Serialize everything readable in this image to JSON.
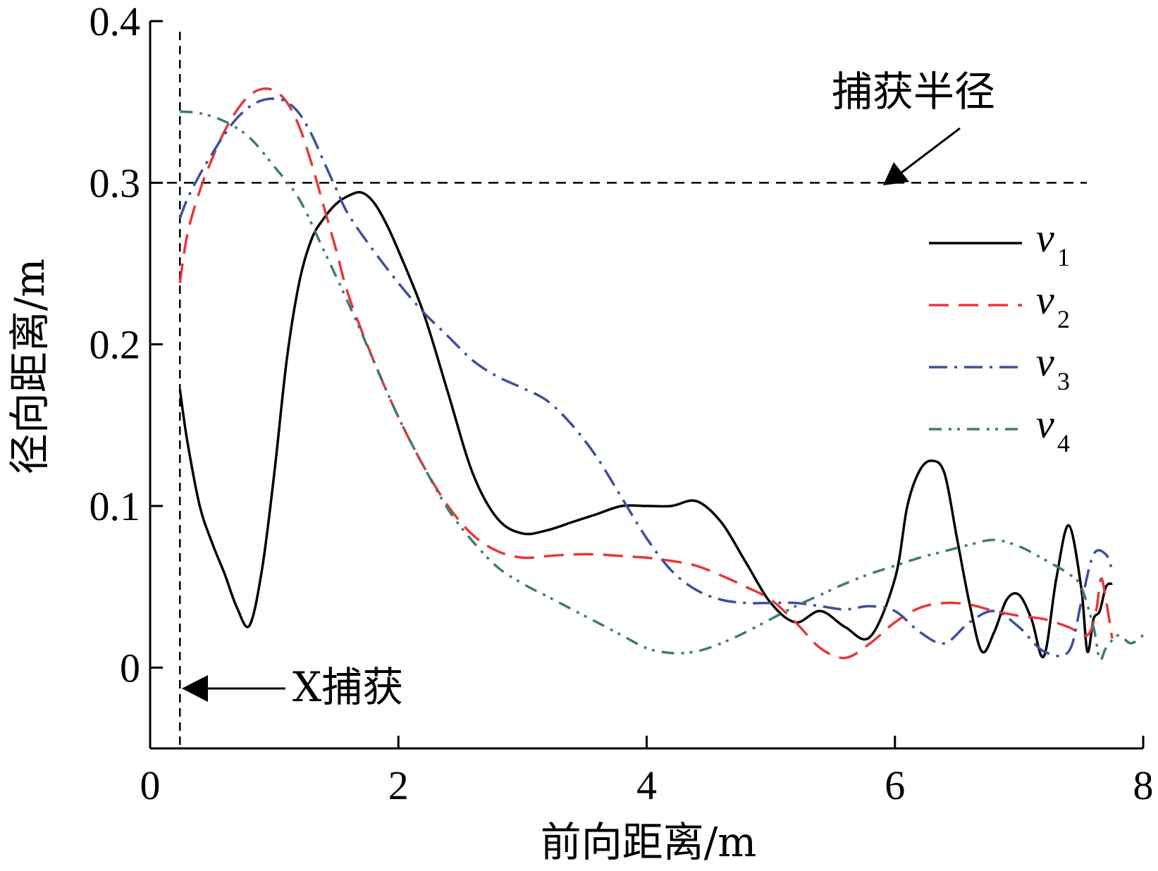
{
  "chart_data": {
    "type": "line",
    "xlabel": "前向距离/m",
    "ylabel": "径向距离/m",
    "xlim": [
      0,
      8
    ],
    "ylim": [
      -0.05,
      0.4
    ],
    "xticks": [
      0,
      2,
      4,
      6,
      8
    ],
    "xtick_labels": [
      "0",
      "2",
      "4",
      "6",
      "8"
    ],
    "yticks": [
      0,
      0.1,
      0.2,
      0.3,
      0.4
    ],
    "ytick_labels": [
      "0",
      "0.1",
      "0.2",
      "0.3",
      "0.4"
    ],
    "grid": false,
    "legend_position": "right",
    "capture_radius": {
      "y": 0.3,
      "label": "捕获半径",
      "color": "#000000"
    },
    "capture_line": {
      "x": 0.24,
      "label": "X捕获",
      "color": "#000000"
    },
    "series": [
      {
        "name": "v",
        "sub": "1",
        "color": "#000000",
        "dash": "solid",
        "x": [
          0.24,
          0.3,
          0.4,
          0.5,
          0.6,
          0.7,
          0.8,
          0.9,
          1.0,
          1.1,
          1.2,
          1.3,
          1.4,
          1.5,
          1.6,
          1.7,
          1.8,
          1.9,
          2.0,
          2.2,
          2.4,
          2.6,
          2.8,
          3.0,
          3.2,
          3.4,
          3.6,
          3.8,
          4.0,
          4.2,
          4.4,
          4.6,
          4.8,
          5.0,
          5.2,
          5.4,
          5.6,
          5.8,
          6.0,
          6.1,
          6.2,
          6.3,
          6.4,
          6.5,
          6.6,
          6.7,
          6.8,
          6.9,
          7.0,
          7.1,
          7.2,
          7.3,
          7.4,
          7.5,
          7.55,
          7.6,
          7.65,
          7.7,
          7.75
        ],
        "y": [
          0.172,
          0.14,
          0.1,
          0.077,
          0.058,
          0.037,
          0.026,
          0.06,
          0.12,
          0.19,
          0.238,
          0.265,
          0.278,
          0.287,
          0.292,
          0.294,
          0.288,
          0.275,
          0.258,
          0.22,
          0.17,
          0.12,
          0.092,
          0.083,
          0.085,
          0.09,
          0.095,
          0.1,
          0.1,
          0.1,
          0.103,
          0.09,
          0.065,
          0.04,
          0.028,
          0.035,
          0.025,
          0.019,
          0.055,
          0.1,
          0.122,
          0.128,
          0.12,
          0.08,
          0.04,
          0.01,
          0.022,
          0.042,
          0.045,
          0.03,
          0.007,
          0.055,
          0.088,
          0.05,
          0.01,
          0.03,
          0.035,
          0.05,
          0.052
        ]
      },
      {
        "name": "v",
        "sub": "2",
        "color": "#e8363a",
        "dash": "28 14",
        "x": [
          0.24,
          0.3,
          0.4,
          0.5,
          0.6,
          0.7,
          0.8,
          0.9,
          1.0,
          1.1,
          1.2,
          1.3,
          1.4,
          1.5,
          1.6,
          1.8,
          2.0,
          2.2,
          2.4,
          2.6,
          2.8,
          3.0,
          3.2,
          3.4,
          3.6,
          3.8,
          4.0,
          4.2,
          4.4,
          4.6,
          4.8,
          5.0,
          5.2,
          5.4,
          5.6,
          5.8,
          6.0,
          6.2,
          6.4,
          6.6,
          6.8,
          7.0,
          7.2,
          7.4,
          7.55,
          7.62,
          7.66,
          7.7,
          7.75
        ],
        "y": [
          0.238,
          0.268,
          0.295,
          0.315,
          0.332,
          0.345,
          0.354,
          0.358,
          0.357,
          0.35,
          0.335,
          0.312,
          0.285,
          0.258,
          0.23,
          0.19,
          0.155,
          0.125,
          0.1,
          0.082,
          0.072,
          0.068,
          0.069,
          0.07,
          0.07,
          0.069,
          0.068,
          0.066,
          0.063,
          0.057,
          0.05,
          0.042,
          0.028,
          0.012,
          0.006,
          0.015,
          0.028,
          0.037,
          0.04,
          0.039,
          0.035,
          0.032,
          0.03,
          0.025,
          0.02,
          0.035,
          0.055,
          0.042,
          0.018
        ]
      },
      {
        "name": "v",
        "sub": "3",
        "color": "#3e4ea0",
        "dash": "26 10 4 10",
        "x": [
          0.24,
          0.3,
          0.4,
          0.5,
          0.6,
          0.7,
          0.8,
          0.9,
          1.0,
          1.1,
          1.2,
          1.3,
          1.4,
          1.5,
          1.6,
          1.8,
          2.0,
          2.2,
          2.4,
          2.6,
          2.8,
          3.0,
          3.2,
          3.4,
          3.6,
          3.8,
          4.0,
          4.2,
          4.4,
          4.6,
          4.8,
          5.0,
          5.2,
          5.4,
          5.6,
          5.8,
          6.0,
          6.2,
          6.4,
          6.6,
          6.8,
          7.0,
          7.2,
          7.4,
          7.5,
          7.6,
          7.7,
          7.75
        ],
        "y": [
          0.278,
          0.29,
          0.305,
          0.318,
          0.33,
          0.34,
          0.347,
          0.351,
          0.352,
          0.35,
          0.343,
          0.33,
          0.313,
          0.296,
          0.28,
          0.258,
          0.238,
          0.22,
          0.205,
          0.19,
          0.18,
          0.173,
          0.165,
          0.15,
          0.13,
          0.105,
          0.08,
          0.06,
          0.048,
          0.042,
          0.04,
          0.04,
          0.04,
          0.038,
          0.036,
          0.038,
          0.035,
          0.022,
          0.015,
          0.028,
          0.035,
          0.025,
          0.01,
          0.01,
          0.04,
          0.07,
          0.07,
          0.06
        ]
      },
      {
        "name": "v",
        "sub": "4",
        "color": "#3d7b72",
        "dash": "18 10 4 8 4 10",
        "x": [
          0.24,
          0.4,
          0.6,
          0.8,
          1.0,
          1.2,
          1.4,
          1.6,
          1.8,
          2.0,
          2.2,
          2.4,
          2.6,
          2.8,
          3.0,
          3.2,
          3.4,
          3.6,
          3.8,
          4.0,
          4.2,
          4.4,
          4.6,
          4.8,
          5.0,
          5.2,
          5.4,
          5.6,
          5.8,
          6.0,
          6.2,
          6.4,
          6.6,
          6.8,
          7.0,
          7.2,
          7.4,
          7.5,
          7.6,
          7.65,
          7.7,
          7.8,
          7.9,
          8.0
        ],
        "y": [
          0.344,
          0.343,
          0.338,
          0.328,
          0.31,
          0.29,
          0.258,
          0.225,
          0.19,
          0.155,
          0.125,
          0.098,
          0.078,
          0.062,
          0.052,
          0.044,
          0.036,
          0.028,
          0.02,
          0.012,
          0.009,
          0.01,
          0.015,
          0.022,
          0.03,
          0.038,
          0.045,
          0.052,
          0.058,
          0.063,
          0.068,
          0.072,
          0.076,
          0.079,
          0.075,
          0.067,
          0.058,
          0.05,
          0.025,
          0.005,
          0.012,
          0.02,
          0.015,
          0.02
        ]
      }
    ]
  }
}
